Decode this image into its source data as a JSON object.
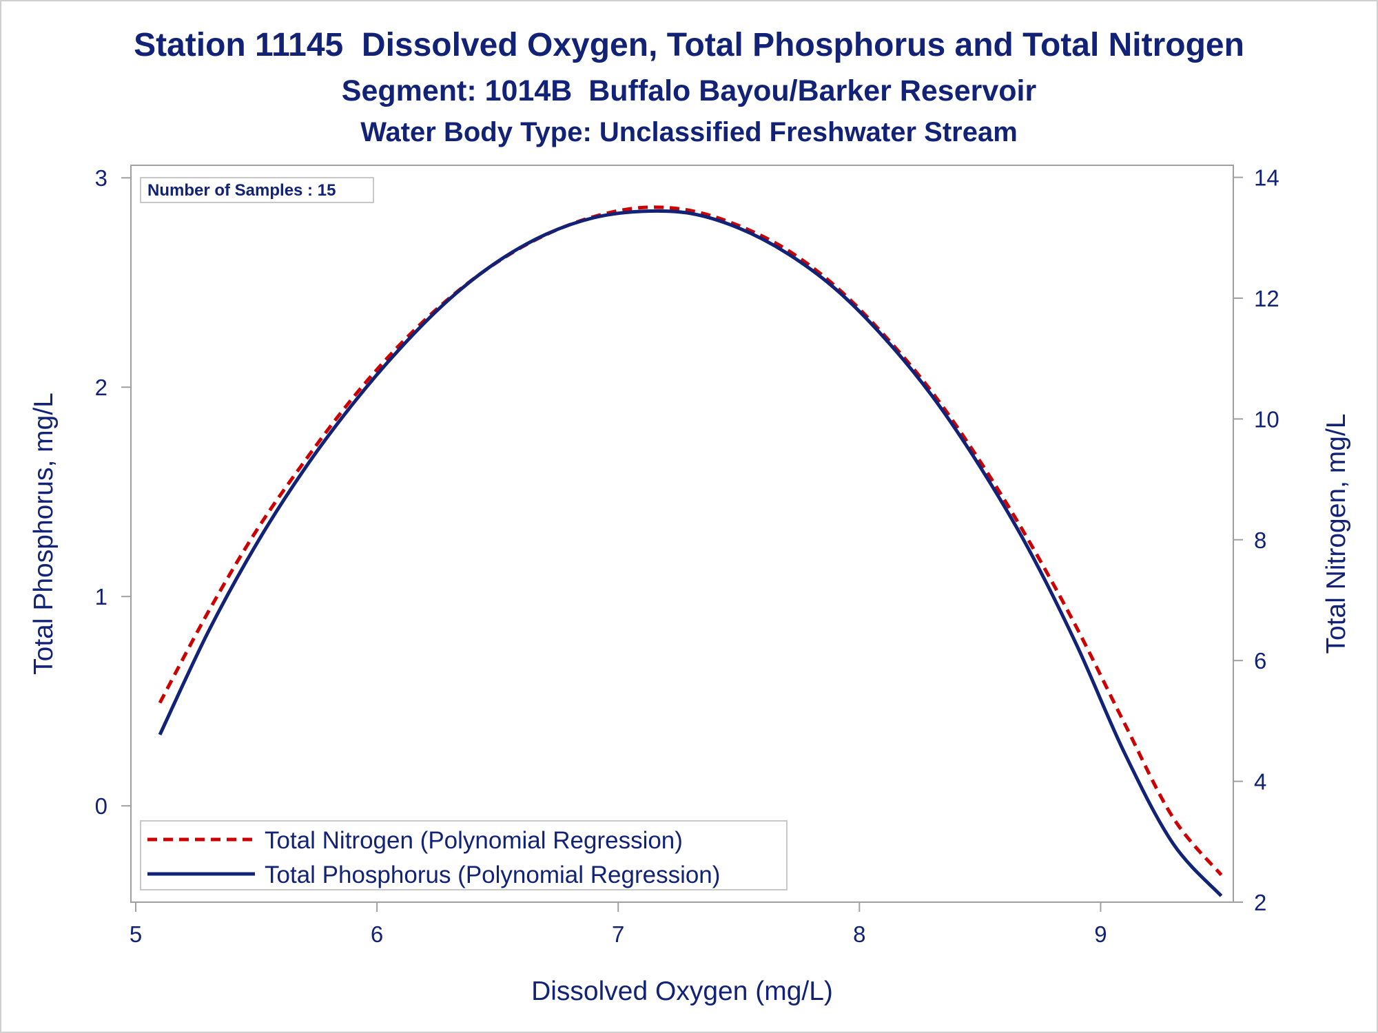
{
  "titles": {
    "line1": "Station 11145  Dissolved Oxygen, Total Phosphorus and Total Nitrogen",
    "line2": "Segment: 1014B  Buffalo Bayou/Barker Reservoir",
    "line3": "Water Body Type: Unclassified Freshwater Stream"
  },
  "inset": {
    "text": "Number of Samples : 15"
  },
  "colors": {
    "nitrogen": "#cc0000",
    "phosphorus": "#112277",
    "text": "#112277",
    "frame": "#a0a0a0"
  },
  "chart_data": {
    "type": "line",
    "xlabel": "Dissolved Oxygen (mg/L)",
    "ylabel": "Total Phosphorus, mg/L",
    "y2label": "Total Nitrogen, mg/L",
    "xlim": [
      4.98,
      9.55
    ],
    "ylim": [
      -0.46,
      3.06
    ],
    "y2lim": [
      2.0,
      14.2
    ],
    "xticks": [
      5,
      6,
      7,
      8,
      9
    ],
    "yticks": [
      0,
      1,
      2,
      3
    ],
    "y2ticks": [
      2,
      4,
      6,
      8,
      10,
      12,
      14
    ],
    "grid": false,
    "legend_position": "bottom-left",
    "series": [
      {
        "name": "Total Nitrogen (Polynomial Regression)",
        "axis": "right",
        "style": "dashed",
        "x": [
          5.1,
          5.3,
          5.5,
          5.7,
          5.9,
          6.1,
          6.3,
          6.5,
          6.7,
          6.9,
          7.1,
          7.3,
          7.5,
          7.7,
          7.9,
          8.1,
          8.3,
          8.5,
          8.7,
          8.9,
          9.1,
          9.3,
          9.5
        ],
        "y": [
          5.3,
          6.8,
          8.15,
          9.3,
          10.35,
          11.25,
          12.0,
          12.6,
          13.05,
          13.35,
          13.5,
          13.45,
          13.2,
          12.8,
          12.2,
          11.4,
          10.45,
          9.3,
          8.0,
          6.55,
          4.95,
          3.4,
          2.45
        ]
      },
      {
        "name": "Total Phosphorus (Polynomial Regression)",
        "axis": "left",
        "style": "solid",
        "x": [
          5.1,
          5.3,
          5.5,
          5.7,
          5.9,
          6.1,
          6.3,
          6.5,
          6.7,
          6.9,
          7.1,
          7.3,
          7.5,
          7.7,
          7.9,
          8.1,
          8.3,
          8.5,
          8.7,
          8.9,
          9.1,
          9.3,
          9.5
        ],
        "y": [
          0.34,
          0.83,
          1.25,
          1.61,
          1.92,
          2.19,
          2.42,
          2.6,
          2.73,
          2.81,
          2.84,
          2.83,
          2.76,
          2.64,
          2.47,
          2.24,
          1.96,
          1.62,
          1.23,
          0.77,
          0.25,
          -0.18,
          -0.43
        ]
      }
    ]
  }
}
